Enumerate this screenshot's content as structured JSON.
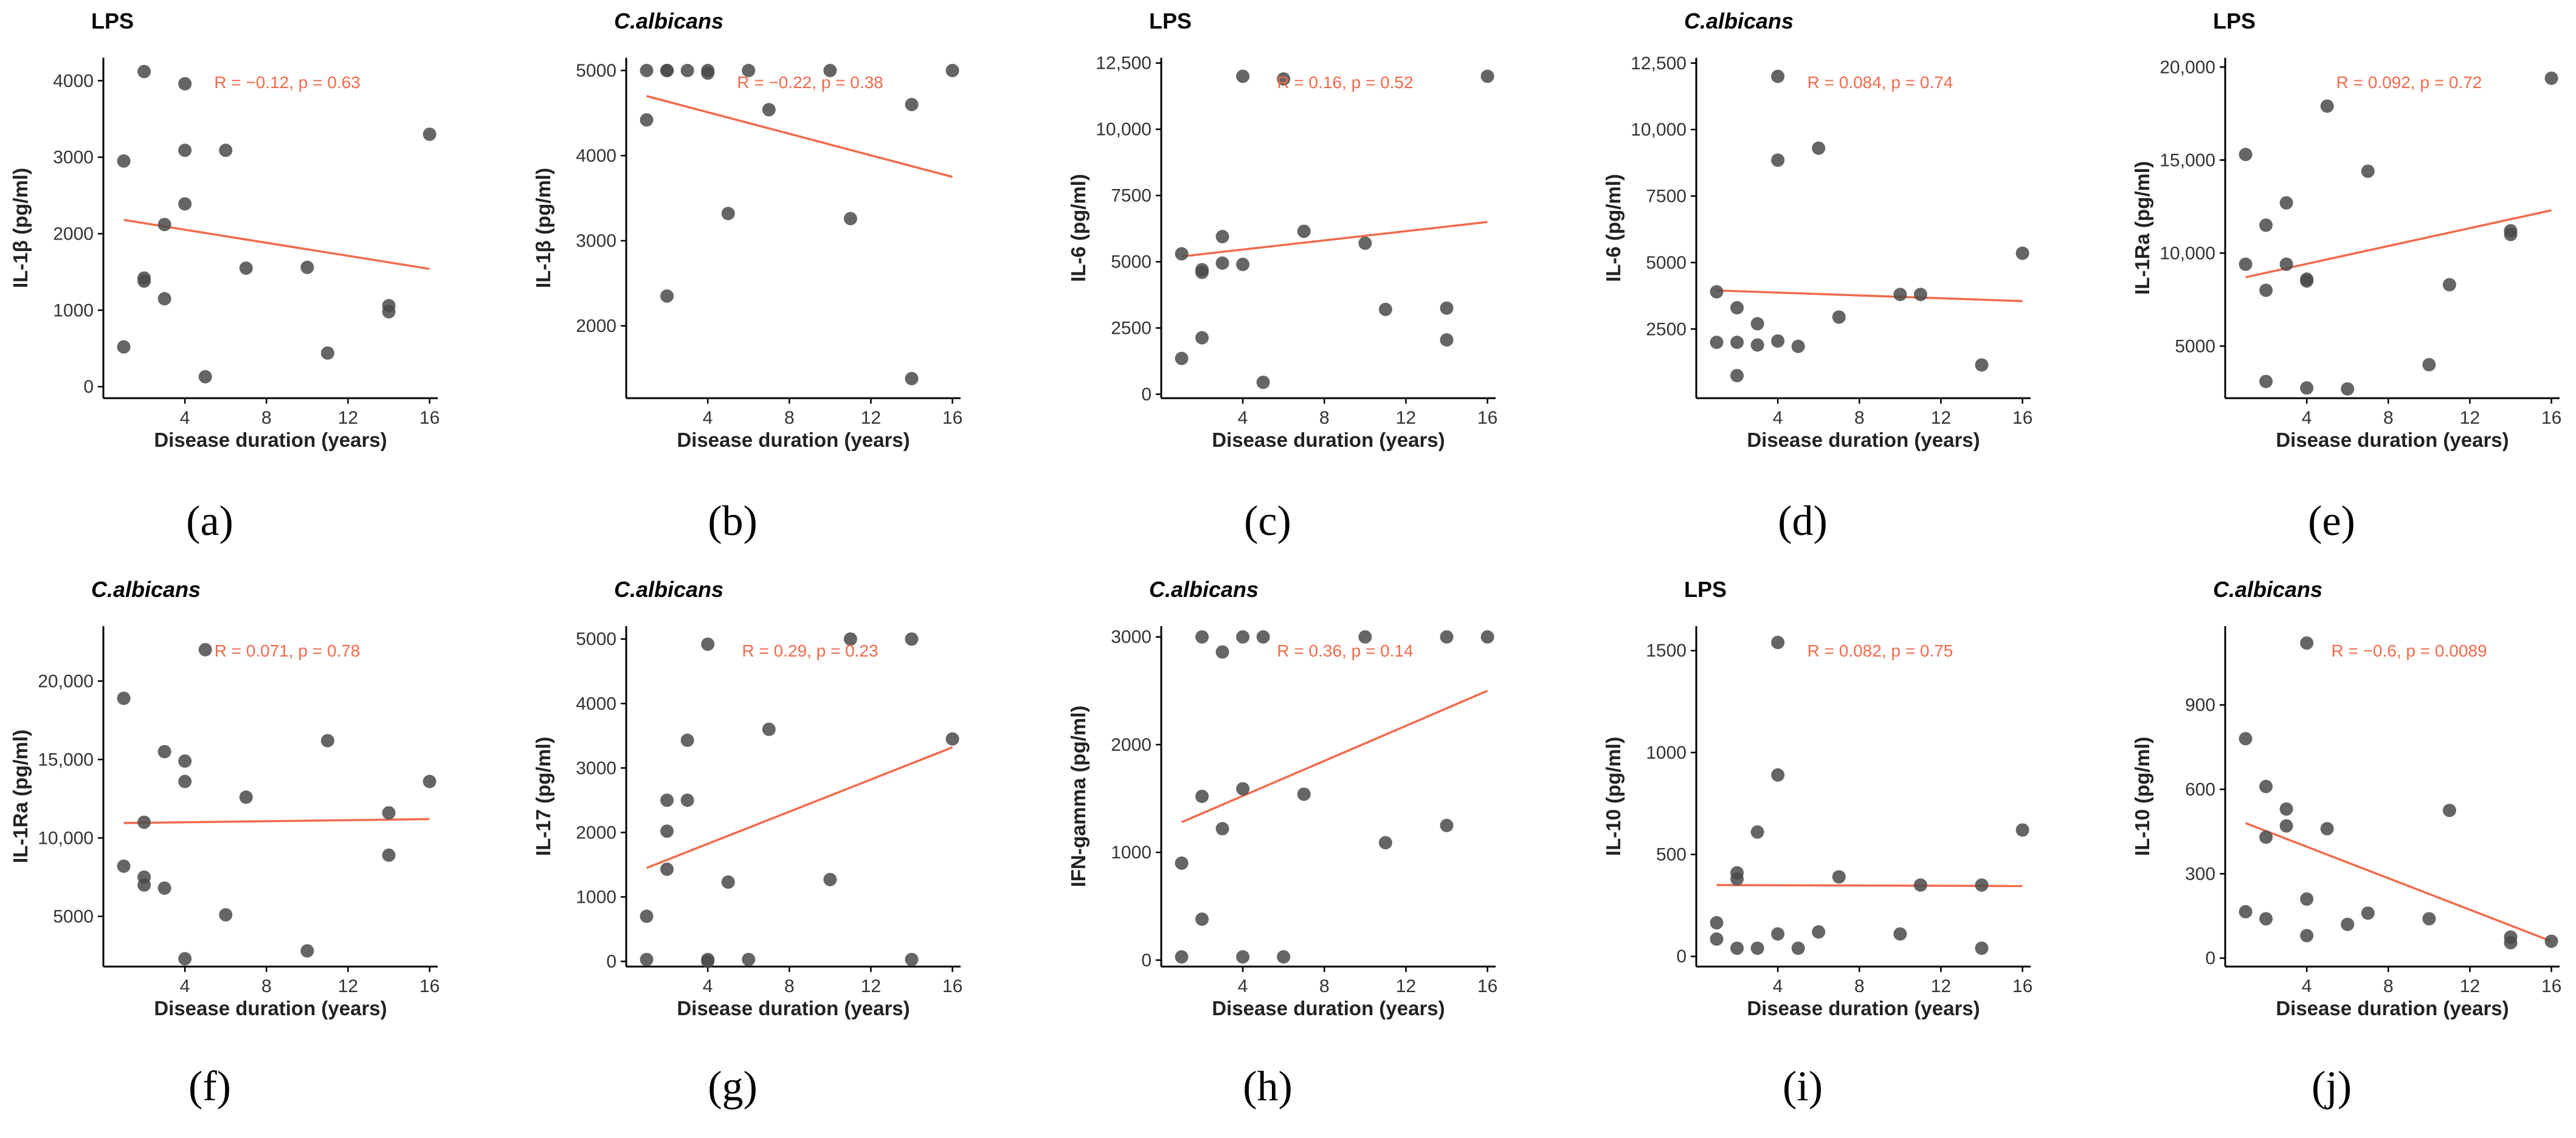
{
  "chart_data": [
    {
      "type": "scatter",
      "caption_letter": "a",
      "title": "LPS",
      "title_italic": false,
      "ylabel": "IL-1β (pg/ml)",
      "xlabel": "Disease duration (years)",
      "xlim": [
        0,
        16.4
      ],
      "ylim": [
        -150,
        4300
      ],
      "xticks": [
        4,
        8,
        12,
        16
      ],
      "yticks": [
        0,
        1000,
        2000,
        3000,
        4000
      ],
      "ytick_labels": [
        "0",
        "1000",
        "2000",
        "3000",
        "4000"
      ],
      "stat": "R = −0.12, p = 0.63",
      "fit": {
        "x": [
          1,
          16
        ],
        "y": [
          2180,
          1540
        ]
      },
      "points": [
        [
          1,
          520
        ],
        [
          1,
          2950
        ],
        [
          2,
          4120
        ],
        [
          2,
          1420
        ],
        [
          2,
          1380
        ],
        [
          3,
          2120
        ],
        [
          3,
          1150
        ],
        [
          4,
          3960
        ],
        [
          4,
          3090
        ],
        [
          4,
          2390
        ],
        [
          5,
          130
        ],
        [
          6,
          3090
        ],
        [
          7,
          1550
        ],
        [
          10,
          1560
        ],
        [
          11,
          440
        ],
        [
          14,
          1060
        ],
        [
          14,
          980
        ],
        [
          16,
          3300
        ]
      ]
    },
    {
      "type": "scatter",
      "caption_letter": "b",
      "title": "C.albicans",
      "title_italic": true,
      "ylabel": "IL-1β (pg/ml)",
      "xlabel": "Disease duration (years)",
      "xlim": [
        0,
        16.4
      ],
      "ylim": [
        1150,
        5150
      ],
      "xticks": [
        4,
        8,
        12,
        16
      ],
      "yticks": [
        2000,
        3000,
        4000,
        5000
      ],
      "ytick_labels": [
        "2000",
        "3000",
        "4000",
        "5000"
      ],
      "stat": "R = −0.22, p = 0.38",
      "fit": {
        "x": [
          1,
          16
        ],
        "y": [
          4700,
          3750
        ]
      },
      "points": [
        [
          1,
          5000
        ],
        [
          1,
          4420
        ],
        [
          2,
          5000
        ],
        [
          2,
          2350
        ],
        [
          2,
          5000
        ],
        [
          3,
          5000
        ],
        [
          4,
          5000
        ],
        [
          4,
          4970
        ],
        [
          5,
          3320
        ],
        [
          6,
          5000
        ],
        [
          7,
          4540
        ],
        [
          10,
          5000
        ],
        [
          11,
          3260
        ],
        [
          14,
          4600
        ],
        [
          14,
          1380
        ],
        [
          16,
          5000
        ]
      ]
    },
    {
      "type": "scatter",
      "caption_letter": "c",
      "title": "LPS",
      "title_italic": false,
      "ylabel": "IL-6 (pg/ml)",
      "xlabel": "Disease duration (years)",
      "xlim": [
        0,
        16.4
      ],
      "ylim": [
        -150,
        12700
      ],
      "xticks": [
        4,
        8,
        12,
        16
      ],
      "yticks": [
        0,
        2500,
        5000,
        7500,
        10000,
        12500
      ],
      "ytick_labels": [
        "0",
        "2500",
        "5000",
        "7500",
        "10,000",
        "12,500"
      ],
      "stat": "R = 0.16, p = 0.52",
      "fit": {
        "x": [
          1,
          16
        ],
        "y": [
          5200,
          6500
        ]
      },
      "points": [
        [
          1,
          1350
        ],
        [
          1,
          5300
        ],
        [
          2,
          2130
        ],
        [
          2,
          4600
        ],
        [
          2,
          4700
        ],
        [
          3,
          4950
        ],
        [
          3,
          5950
        ],
        [
          4,
          12000
        ],
        [
          4,
          4900
        ],
        [
          5,
          450
        ],
        [
          6,
          11900
        ],
        [
          7,
          6150
        ],
        [
          10,
          5700
        ],
        [
          11,
          3200
        ],
        [
          14,
          3250
        ],
        [
          14,
          2050
        ],
        [
          16,
          12000
        ]
      ]
    },
    {
      "type": "scatter",
      "caption_letter": "d",
      "title": "C.albicans",
      "title_italic": true,
      "ylabel": "IL-6 (pg/ml)",
      "xlabel": "Disease duration (years)",
      "xlim": [
        0,
        16.4
      ],
      "ylim": [
        -100,
        12700
      ],
      "xticks": [
        4,
        8,
        12,
        16
      ],
      "yticks": [
        2500,
        5000,
        7500,
        10000,
        12500
      ],
      "ytick_labels": [
        "2500",
        "5000",
        "7500",
        "10,000",
        "12,500"
      ],
      "stat": "R = 0.084, p = 0.74",
      "fit": {
        "x": [
          1,
          16
        ],
        "y": [
          3950,
          3550
        ]
      },
      "points": [
        [
          1,
          3900
        ],
        [
          1,
          2000
        ],
        [
          2,
          3300
        ],
        [
          2,
          2000
        ],
        [
          2,
          750
        ],
        [
          3,
          2700
        ],
        [
          3,
          1900
        ],
        [
          4,
          12000
        ],
        [
          4,
          8850
        ],
        [
          4,
          2050
        ],
        [
          5,
          1850
        ],
        [
          6,
          9300
        ],
        [
          7,
          2950
        ],
        [
          10,
          3800
        ],
        [
          11,
          3800
        ],
        [
          14,
          1150
        ],
        [
          16,
          5350
        ]
      ]
    },
    {
      "type": "scatter",
      "caption_letter": "e",
      "title": "LPS",
      "title_italic": false,
      "ylabel": "IL-1Ra (pg/ml)",
      "xlabel": "Disease duration (years)",
      "xlim": [
        0,
        16.4
      ],
      "ylim": [
        2200,
        20500
      ],
      "xticks": [
        4,
        8,
        12,
        16
      ],
      "yticks": [
        5000,
        10000,
        15000,
        20000
      ],
      "ytick_labels": [
        "5000",
        "10,000",
        "15,000",
        "20,000"
      ],
      "stat": "R = 0.092, p = 0.72",
      "fit": {
        "x": [
          1,
          16
        ],
        "y": [
          8700,
          12300
        ]
      },
      "points": [
        [
          1,
          15300
        ],
        [
          1,
          9400
        ],
        [
          2,
          11500
        ],
        [
          2,
          8000
        ],
        [
          2,
          3100
        ],
        [
          3,
          12700
        ],
        [
          3,
          9400
        ],
        [
          4,
          8600
        ],
        [
          4,
          8500
        ],
        [
          4,
          2750
        ],
        [
          5,
          17900
        ],
        [
          6,
          2700
        ],
        [
          7,
          14400
        ],
        [
          10,
          4000
        ],
        [
          11,
          8300
        ],
        [
          14,
          11200
        ],
        [
          14,
          11000
        ],
        [
          16,
          19400
        ]
      ]
    },
    {
      "type": "scatter",
      "caption_letter": "f",
      "title": "C.albicans",
      "title_italic": true,
      "ylabel": "IL-1Ra (pg/ml)",
      "xlabel": "Disease duration (years)",
      "xlim": [
        0,
        16.4
      ],
      "ylim": [
        1800,
        23500
      ],
      "xticks": [
        4,
        8,
        12,
        16
      ],
      "yticks": [
        5000,
        10000,
        15000,
        20000
      ],
      "ytick_labels": [
        "5000",
        "10,000",
        "15,000",
        "20,000"
      ],
      "stat": "R = 0.071, p = 0.78",
      "fit": {
        "x": [
          1,
          16
        ],
        "y": [
          10950,
          11200
        ]
      },
      "points": [
        [
          1,
          18900
        ],
        [
          1,
          8200
        ],
        [
          2,
          11000
        ],
        [
          2,
          7500
        ],
        [
          2,
          7000
        ],
        [
          3,
          15500
        ],
        [
          3,
          6800
        ],
        [
          4,
          14900
        ],
        [
          4,
          13600
        ],
        [
          4,
          2300
        ],
        [
          5,
          22000
        ],
        [
          6,
          5100
        ],
        [
          7,
          12600
        ],
        [
          10,
          2800
        ],
        [
          11,
          16200
        ],
        [
          14,
          11600
        ],
        [
          14,
          8900
        ],
        [
          16,
          13600
        ]
      ]
    },
    {
      "type": "scatter",
      "caption_letter": "g",
      "title": "C.albicans",
      "title_italic": true,
      "ylabel": "IL-17 (pg/ml)",
      "xlabel": "Disease duration (years)",
      "xlim": [
        0,
        16.4
      ],
      "ylim": [
        -80,
        5200
      ],
      "xticks": [
        4,
        8,
        12,
        16
      ],
      "yticks": [
        0,
        1000,
        2000,
        3000,
        4000,
        5000
      ],
      "ytick_labels": [
        "0",
        "1000",
        "2000",
        "3000",
        "4000",
        "5000"
      ],
      "stat": "R = 0.29, p = 0.23",
      "fit": {
        "x": [
          1,
          16
        ],
        "y": [
          1450,
          3320
        ]
      },
      "points": [
        [
          1,
          700
        ],
        [
          1,
          30
        ],
        [
          2,
          2500
        ],
        [
          2,
          2020
        ],
        [
          2,
          1430
        ],
        [
          3,
          3430
        ],
        [
          3,
          2500
        ],
        [
          4,
          4920
        ],
        [
          4,
          30
        ],
        [
          4,
          0
        ],
        [
          5,
          1230
        ],
        [
          6,
          30
        ],
        [
          7,
          3600
        ],
        [
          10,
          1270
        ],
        [
          11,
          5000
        ],
        [
          14,
          5000
        ],
        [
          14,
          30
        ],
        [
          16,
          3450
        ]
      ]
    },
    {
      "type": "scatter",
      "caption_letter": "h",
      "title": "C.albicans",
      "title_italic": true,
      "ylabel": "IFN-gamma (pg/ml)",
      "xlabel": "Disease duration (years)",
      "xlim": [
        0,
        16.4
      ],
      "ylim": [
        -60,
        3100
      ],
      "xticks": [
        4,
        8,
        12,
        16
      ],
      "yticks": [
        0,
        1000,
        2000,
        3000
      ],
      "ytick_labels": [
        "0",
        "1000",
        "2000",
        "3000"
      ],
      "stat": "R = 0.36, p = 0.14",
      "fit": {
        "x": [
          1,
          16
        ],
        "y": [
          1280,
          2500
        ]
      },
      "points": [
        [
          1,
          900
        ],
        [
          1,
          30
        ],
        [
          2,
          3000
        ],
        [
          2,
          1520
        ],
        [
          2,
          380
        ],
        [
          3,
          2860
        ],
        [
          3,
          1220
        ],
        [
          4,
          3000
        ],
        [
          4,
          1590
        ],
        [
          4,
          30
        ],
        [
          5,
          3000
        ],
        [
          6,
          30
        ],
        [
          7,
          1540
        ],
        [
          10,
          3000
        ],
        [
          11,
          1090
        ],
        [
          14,
          3000
        ],
        [
          14,
          1250
        ],
        [
          16,
          3000
        ]
      ]
    },
    {
      "type": "scatter",
      "caption_letter": "i",
      "title": "LPS",
      "title_italic": false,
      "ylabel": "IL-10 (pg/ml)",
      "xlabel": "Disease duration (years)",
      "xlim": [
        0,
        16.4
      ],
      "ylim": [
        -50,
        1620
      ],
      "xticks": [
        4,
        8,
        12,
        16
      ],
      "yticks": [
        0,
        500,
        1000,
        1500
      ],
      "ytick_labels": [
        "0",
        "500",
        "1000",
        "1500"
      ],
      "stat": "R = 0.082, p = 0.75",
      "fit": {
        "x": [
          1,
          16
        ],
        "y": [
          350,
          345
        ]
      },
      "points": [
        [
          1,
          165
        ],
        [
          1,
          85
        ],
        [
          2,
          410
        ],
        [
          2,
          380
        ],
        [
          2,
          40
        ],
        [
          3,
          610
        ],
        [
          3,
          40
        ],
        [
          4,
          1540
        ],
        [
          4,
          890
        ],
        [
          4,
          110
        ],
        [
          5,
          40
        ],
        [
          6,
          120
        ],
        [
          7,
          390
        ],
        [
          10,
          110
        ],
        [
          11,
          350
        ],
        [
          14,
          350
        ],
        [
          14,
          40
        ],
        [
          16,
          620
        ]
      ]
    },
    {
      "type": "scatter",
      "caption_letter": "j",
      "title": "C.albicans",
      "title_italic": true,
      "ylabel": "IL-10 (pg/ml)",
      "xlabel": "Disease duration (years)",
      "xlim": [
        0,
        16.4
      ],
      "ylim": [
        -30,
        1180
      ],
      "xticks": [
        4,
        8,
        12,
        16
      ],
      "yticks": [
        0,
        300,
        600,
        900
      ],
      "ytick_labels": [
        "0",
        "300",
        "600",
        "900"
      ],
      "stat": "R = −0.6, p = 0.0089",
      "fit": {
        "x": [
          1,
          16
        ],
        "y": [
          480,
          60
        ]
      },
      "points": [
        [
          1,
          780
        ],
        [
          1,
          165
        ],
        [
          2,
          610
        ],
        [
          2,
          430
        ],
        [
          2,
          140
        ],
        [
          3,
          530
        ],
        [
          3,
          470
        ],
        [
          4,
          1120
        ],
        [
          4,
          210
        ],
        [
          4,
          80
        ],
        [
          5,
          460
        ],
        [
          6,
          120
        ],
        [
          7,
          160
        ],
        [
          10,
          140
        ],
        [
          11,
          525
        ],
        [
          14,
          75
        ],
        [
          14,
          55
        ],
        [
          16,
          60
        ]
      ]
    }
  ],
  "colors": {
    "point": "#4a4a4a",
    "point_opacity": 0.85,
    "fit_line": "#f26a4b",
    "stat_text": "#f26a4b",
    "axis": "#000000"
  }
}
